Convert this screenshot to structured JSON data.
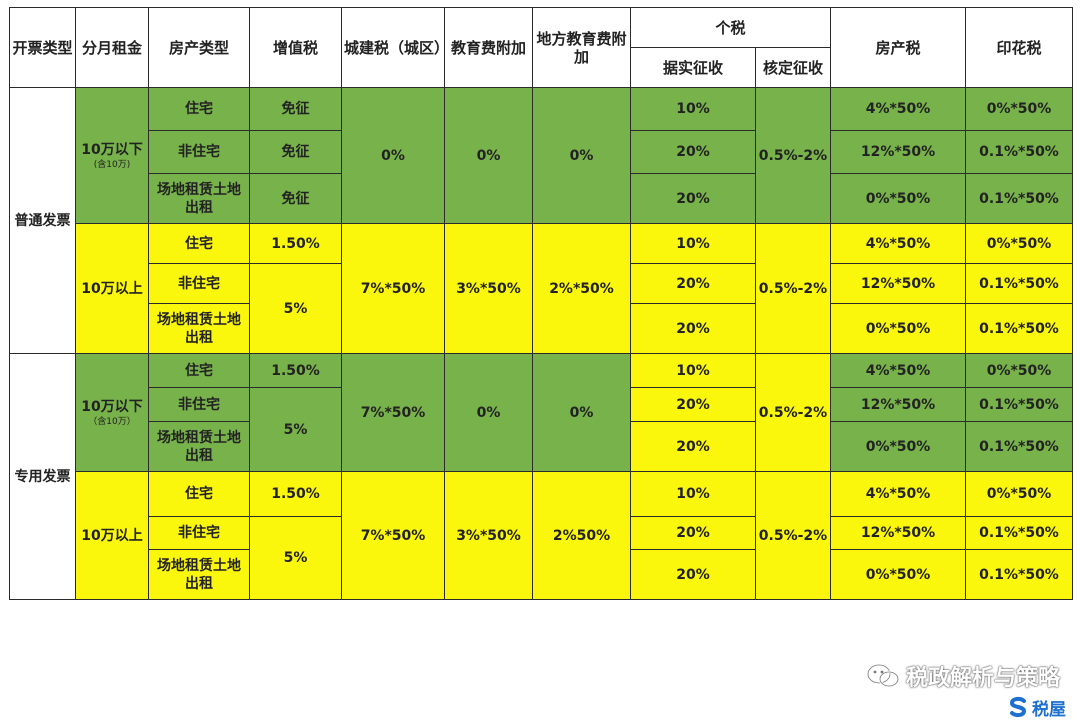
{
  "colors": {
    "green": "#78b24a",
    "yellow": "#fbf70c",
    "brand_blue": "#1e6fd0"
  },
  "header": {
    "invoice_type": "开票类型",
    "monthly_rent": "分月租金",
    "property_type": "房产类型",
    "vat": "增值税",
    "urban_tax": "城建税（城区）",
    "edu_surcharge": "教育费附加",
    "local_edu_surcharge": "地方教育费附加",
    "iit": "个税",
    "iit_actual": "据实征收",
    "iit_assessed": "核定征收",
    "property_tax": "房产税",
    "stamp_tax": "印花税"
  },
  "rows": {
    "ord_invoice": "普通发票",
    "spec_invoice": "专用发票",
    "under": "10万以下",
    "under_note": "(含10万)",
    "under_note2": "（含10万）",
    "over": "10万以上",
    "residential": "住宅",
    "nonres": "非住宅",
    "land": "场地租赁土地出租",
    "exempt": "免征",
    "vat_15": "1.50%",
    "vat_5": "5%",
    "zero": "0%",
    "urban_7x50": "7%*50%",
    "edu_3x50": "3%*50%",
    "local_2x50": "2%*50%",
    "local_2_50": "2%50%",
    "iit_10": "10%",
    "iit_20": "20%",
    "assessed_range": "0.5%-2%",
    "prop_4x50": "4%*50%",
    "prop_12x50": "12%*50%",
    "prop_0x50": "0%*50%",
    "stamp_0x50": "0%*50%",
    "stamp_01x50": "0.1%*50%"
  },
  "watermark": {
    "text": "税政解析与策略",
    "icon": "wechat-icon"
  },
  "logo": {
    "text": "税屋",
    "icon": "s-logo-icon"
  }
}
